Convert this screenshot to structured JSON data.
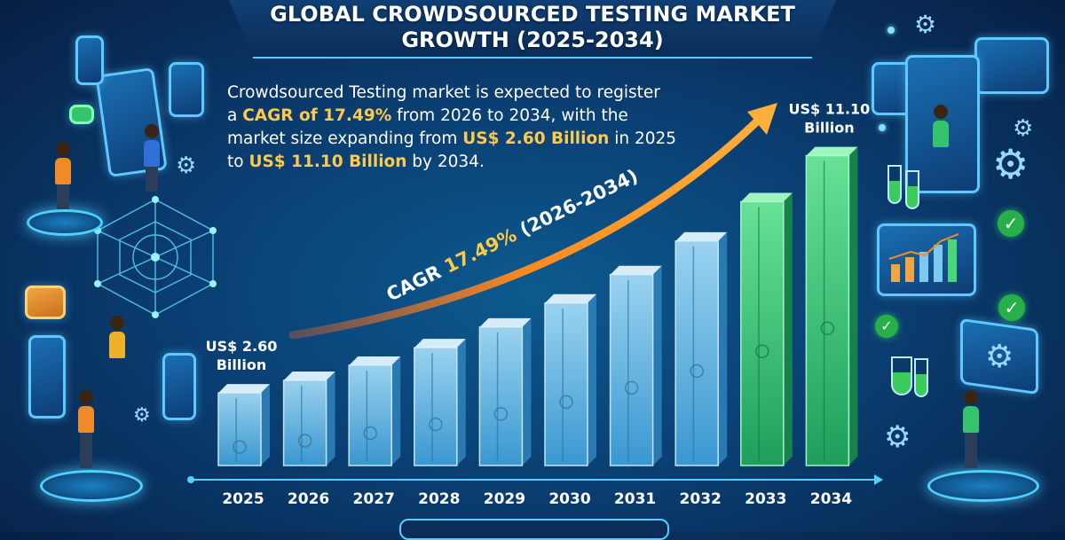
{
  "title_lines": [
    "GLOBAL CROWDSOURCED TESTING MARKET",
    "GROWTH (2025-2034)"
  ],
  "description": {
    "line1": "Crowdsourced Testing market is expected to register",
    "line2_pre": "a ",
    "line2_hl": "CAGR of 17.49%",
    "line2_post": " from 2026 to 2034, with the",
    "line3_pre": "market size expanding from ",
    "line3_hl": "US$ 2.60 Billion",
    "line3_post": " in 2025",
    "line4_pre": "to ",
    "line4_hl": "US$ 11.10 Billion",
    "line4_post": " by 2034."
  },
  "colors": {
    "accent_orange": "#ff8a1f",
    "highlight_yellow": "#ffc94a",
    "bar_blue": "#7cc9f2",
    "bar_green": "#4bd67a",
    "glow_cyan": "#4fd1ff"
  },
  "chart_data": {
    "type": "bar",
    "categories": [
      "2025",
      "2026",
      "2027",
      "2028",
      "2029",
      "2030",
      "2031",
      "2032",
      "2033",
      "2034"
    ],
    "values": [
      2.6,
      3.05,
      3.59,
      4.22,
      4.96,
      5.82,
      6.84,
      8.04,
      9.45,
      11.1
    ],
    "ylim": [
      0,
      11.5
    ],
    "grid": false,
    "data_labels": [
      {
        "category": "2025",
        "lines": [
          "US$ 2.60",
          "Billion"
        ]
      },
      {
        "category": "2034",
        "lines": [
          "US$ 11.10",
          "Billion"
        ]
      }
    ],
    "annotation": {
      "text_pre": "CAGR ",
      "text_hl": "17.49%",
      "text_post": " (2026-2034)"
    }
  },
  "icons": [
    "gear-icon",
    "check-icon",
    "flask-icon",
    "tablet-icon",
    "monitor-icon",
    "envelope-icon",
    "network-globe-icon"
  ]
}
